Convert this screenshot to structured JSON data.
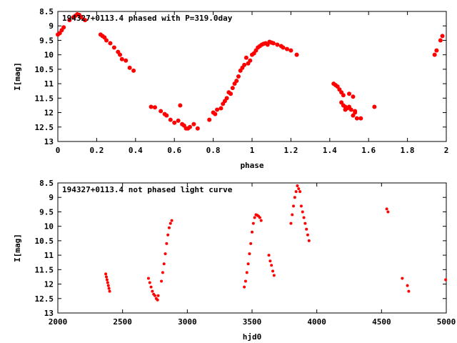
{
  "chart_data": [
    {
      "type": "scatter",
      "title": "194327+0113.4 phased with P=319.0day",
      "xlabel": "phase",
      "ylabel": "I[mag]",
      "xlim": [
        0,
        2
      ],
      "ylim": [
        8.5,
        13
      ],
      "y_inverted": true,
      "grid": false,
      "xticks": [
        "0",
        "0.2",
        "0.4",
        "0.6",
        "0.8",
        "1",
        "1.2",
        "1.4",
        "1.6",
        "1.8",
        "2"
      ],
      "yticks": [
        "8.5",
        "9",
        "9.5",
        "10",
        "10.5",
        "11",
        "11.5",
        "12",
        "12.5",
        "13"
      ],
      "marker_color": "#ff0000",
      "series": [
        {
          "points": [
            [
              0.0,
              9.3
            ],
            [
              0.01,
              9.25
            ],
            [
              0.02,
              9.15
            ],
            [
              0.03,
              9.05
            ],
            [
              0.06,
              8.8
            ],
            [
              0.08,
              8.7
            ],
            [
              0.09,
              8.65
            ],
            [
              0.1,
              8.6
            ],
            [
              0.11,
              8.62
            ],
            [
              0.12,
              8.7
            ],
            [
              0.14,
              8.8
            ],
            [
              0.22,
              9.3
            ],
            [
              0.23,
              9.35
            ],
            [
              0.24,
              9.4
            ],
            [
              0.25,
              9.5
            ],
            [
              0.27,
              9.6
            ],
            [
              0.29,
              9.75
            ],
            [
              0.31,
              9.9
            ],
            [
              0.32,
              10.0
            ],
            [
              0.33,
              10.15
            ],
            [
              0.35,
              10.2
            ],
            [
              0.37,
              10.45
            ],
            [
              0.39,
              10.55
            ],
            [
              0.48,
              11.8
            ],
            [
              0.5,
              11.82
            ],
            [
              0.53,
              11.95
            ],
            [
              0.55,
              12.05
            ],
            [
              0.56,
              12.1
            ],
            [
              0.58,
              12.25
            ],
            [
              0.6,
              12.35
            ],
            [
              0.62,
              12.28
            ],
            [
              0.63,
              11.75
            ],
            [
              0.64,
              12.4
            ],
            [
              0.65,
              12.45
            ],
            [
              0.66,
              12.55
            ],
            [
              0.67,
              12.55
            ],
            [
              0.68,
              12.5
            ],
            [
              0.7,
              12.4
            ],
            [
              0.72,
              12.55
            ],
            [
              0.78,
              12.25
            ],
            [
              0.8,
              12.0
            ],
            [
              0.81,
              12.05
            ],
            [
              0.82,
              11.9
            ],
            [
              0.84,
              11.85
            ],
            [
              0.85,
              11.7
            ],
            [
              0.86,
              11.6
            ],
            [
              0.87,
              11.5
            ],
            [
              0.88,
              11.3
            ],
            [
              0.89,
              11.35
            ],
            [
              0.9,
              11.15
            ],
            [
              0.91,
              11.0
            ],
            [
              0.92,
              10.9
            ],
            [
              0.93,
              10.75
            ],
            [
              0.94,
              10.55
            ],
            [
              0.95,
              10.45
            ],
            [
              0.96,
              10.35
            ],
            [
              0.97,
              10.1
            ],
            [
              0.98,
              10.3
            ],
            [
              0.99,
              10.2
            ],
            [
              1.0,
              10.0
            ],
            [
              1.01,
              9.95
            ],
            [
              1.02,
              9.85
            ],
            [
              1.03,
              9.75
            ],
            [
              1.04,
              9.7
            ],
            [
              1.05,
              9.65
            ],
            [
              1.06,
              9.62
            ],
            [
              1.07,
              9.6
            ],
            [
              1.08,
              9.65
            ],
            [
              1.09,
              9.55
            ],
            [
              1.1,
              9.58
            ],
            [
              1.11,
              9.6
            ],
            [
              1.13,
              9.65
            ],
            [
              1.15,
              9.7
            ],
            [
              1.16,
              9.75
            ],
            [
              1.18,
              9.8
            ],
            [
              1.2,
              9.85
            ],
            [
              1.23,
              10.0
            ],
            [
              1.42,
              11.0
            ],
            [
              1.43,
              11.05
            ],
            [
              1.44,
              11.1
            ],
            [
              1.45,
              11.2
            ],
            [
              1.46,
              11.3
            ],
            [
              1.47,
              11.4
            ],
            [
              1.48,
              11.8
            ],
            [
              1.49,
              11.85
            ],
            [
              1.5,
              11.35
            ],
            [
              1.51,
              11.9
            ],
            [
              1.52,
              11.45
            ],
            [
              1.53,
              11.95
            ],
            [
              1.54,
              12.2
            ],
            [
              1.46,
              11.65
            ],
            [
              1.47,
              11.75
            ],
            [
              1.48,
              11.9
            ],
            [
              1.5,
              11.8
            ],
            [
              1.52,
              12.1
            ],
            [
              1.53,
              12.0
            ],
            [
              1.56,
              12.2
            ],
            [
              1.63,
              11.8
            ],
            [
              1.94,
              10.0
            ],
            [
              1.95,
              9.85
            ],
            [
              1.97,
              9.5
            ],
            [
              1.98,
              9.35
            ]
          ]
        }
      ]
    },
    {
      "type": "scatter",
      "title": "194327+0113.4 not phased light curve",
      "xlabel": "hjd0",
      "ylabel": "I[mag]",
      "xlim": [
        2000,
        5000
      ],
      "ylim": [
        8.5,
        13
      ],
      "y_inverted": true,
      "grid": false,
      "xticks": [
        "2000",
        "2500",
        "3000",
        "3500",
        "4000",
        "4500",
        "5000"
      ],
      "yticks": [
        "8.5",
        "9",
        "9.5",
        "10",
        "10.5",
        "11",
        "11.5",
        "12",
        "12.5",
        "13"
      ],
      "marker_color": "#ff0000",
      "series": [
        {
          "points": [
            [
              2370,
              11.65
            ],
            [
              2375,
              11.75
            ],
            [
              2380,
              11.85
            ],
            [
              2385,
              11.95
            ],
            [
              2390,
              12.05
            ],
            [
              2395,
              12.15
            ],
            [
              2400,
              12.25
            ],
            [
              2700,
              11.8
            ],
            [
              2710,
              11.95
            ],
            [
              2720,
              12.1
            ],
            [
              2730,
              12.25
            ],
            [
              2740,
              12.35
            ],
            [
              2750,
              12.4
            ],
            [
              2760,
              12.5
            ],
            [
              2770,
              12.55
            ],
            [
              2775,
              12.4
            ],
            [
              2800,
              11.9
            ],
            [
              2810,
              11.6
            ],
            [
              2820,
              11.3
            ],
            [
              2830,
              10.95
            ],
            [
              2840,
              10.6
            ],
            [
              2850,
              10.3
            ],
            [
              2860,
              10.05
            ],
            [
              2870,
              9.9
            ],
            [
              2880,
              9.8
            ],
            [
              3440,
              12.1
            ],
            [
              3450,
              11.9
            ],
            [
              3460,
              11.6
            ],
            [
              3470,
              11.3
            ],
            [
              3480,
              10.95
            ],
            [
              3490,
              10.6
            ],
            [
              3500,
              10.2
            ],
            [
              3510,
              9.9
            ],
            [
              3520,
              9.7
            ],
            [
              3530,
              9.6
            ],
            [
              3540,
              9.62
            ],
            [
              3550,
              9.65
            ],
            [
              3560,
              9.7
            ],
            [
              3570,
              9.8
            ],
            [
              3630,
              11.0
            ],
            [
              3640,
              11.2
            ],
            [
              3650,
              11.35
            ],
            [
              3660,
              11.55
            ],
            [
              3670,
              11.7
            ],
            [
              3800,
              9.9
            ],
            [
              3810,
              9.6
            ],
            [
              3820,
              9.3
            ],
            [
              3830,
              9.0
            ],
            [
              3840,
              8.8
            ],
            [
              3850,
              8.6
            ],
            [
              3860,
              8.7
            ],
            [
              3870,
              8.8
            ],
            [
              3880,
              9.3
            ],
            [
              3890,
              9.5
            ],
            [
              3900,
              9.7
            ],
            [
              3910,
              9.9
            ],
            [
              3920,
              10.1
            ],
            [
              3930,
              10.3
            ],
            [
              3940,
              10.5
            ],
            [
              4540,
              9.4
            ],
            [
              4550,
              9.5
            ],
            [
              4660,
              11.8
            ],
            [
              4700,
              12.05
            ],
            [
              4710,
              12.25
            ],
            [
              4995,
              11.85
            ]
          ]
        }
      ]
    }
  ]
}
